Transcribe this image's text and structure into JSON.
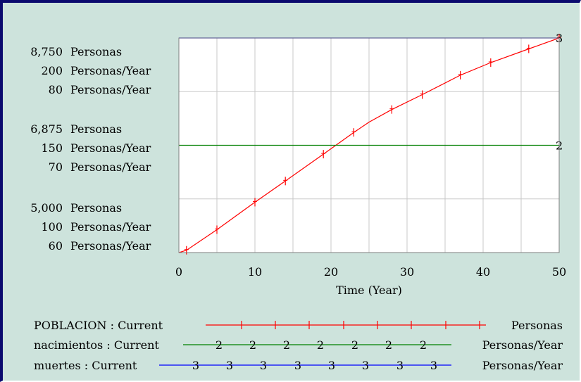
{
  "colors": {
    "background": "#cde3dc",
    "plot_background": "#ffffff",
    "grid": "#c8c8c8",
    "frame": "#0a0a6e",
    "series_1": "#ff0000",
    "series_2": "#008000",
    "series_3": "#0000ff"
  },
  "chart_data": {
    "type": "line",
    "xlabel": "Time (Year)",
    "xlim": [
      0,
      50
    ],
    "x_ticks": [
      "0",
      "10",
      "20",
      "30",
      "40",
      "50"
    ],
    "grid": true,
    "y_axes": [
      {
        "units": "Personas",
        "range": [
          5000,
          8750
        ],
        "tick_labels": [
          "8,750",
          "6,875",
          "5,000"
        ]
      },
      {
        "units": "Personas/Year",
        "range": [
          100,
          200
        ],
        "tick_labels": [
          "200",
          "150",
          "100"
        ]
      },
      {
        "units": "Personas/Year",
        "range": [
          60,
          80
        ],
        "tick_labels": [
          "80",
          "70",
          "60"
        ]
      }
    ],
    "series": [
      {
        "name": "POBLACION : Current",
        "units": "Personas",
        "marker": "1",
        "axis": 0,
        "x": [
          0,
          1,
          5,
          10,
          14,
          19,
          23,
          25,
          28,
          32,
          37,
          41,
          46,
          50
        ],
        "values": [
          5000,
          5040,
          5400,
          5880,
          6250,
          6720,
          7100,
          7280,
          7500,
          7760,
          8100,
          8320,
          8560,
          8750
        ]
      },
      {
        "name": "nacimientos : Current",
        "units": "Personas/Year",
        "marker": "2",
        "axis": 1,
        "x": [
          0,
          50
        ],
        "values": [
          150,
          150
        ]
      },
      {
        "name": "muertes : Current",
        "units": "Personas/Year",
        "marker": "3",
        "axis": 2,
        "x": [
          0,
          50
        ],
        "values": [
          80,
          80
        ]
      }
    ]
  }
}
